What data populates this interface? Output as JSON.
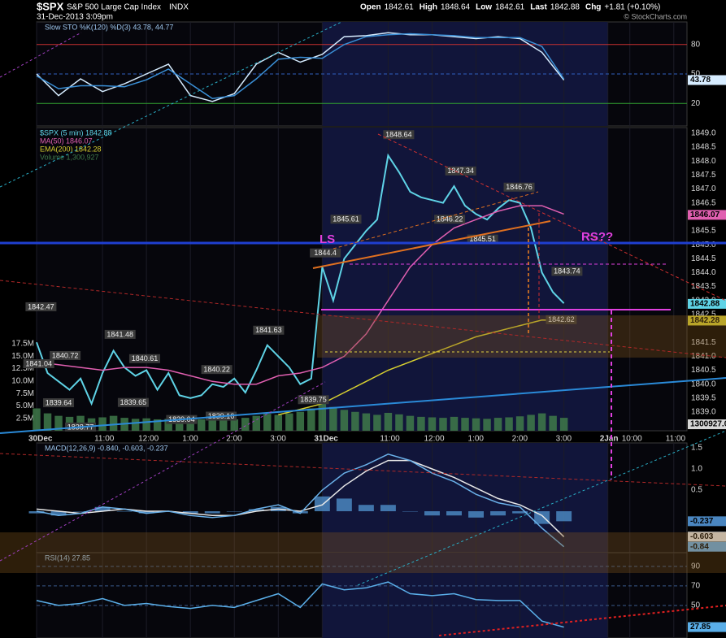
{
  "header": {
    "symbol": "$SPX",
    "name": "S&P 500 Large Cap Index",
    "exchange": "INDX",
    "timestamp": "31-Dec-2013 3:09pm",
    "quote": [
      {
        "label": "Open",
        "value": 1842.61
      },
      {
        "label": "High",
        "value": 1848.64
      },
      {
        "label": "Low",
        "value": 1842.61
      },
      {
        "label": "Last",
        "value": 1842.88
      },
      {
        "label": "Chg",
        "value": "+1.81 (+0.10%)"
      }
    ],
    "credit": "© StockCharts.com"
  },
  "chart_data": [
    {
      "type": "line",
      "title": "Slow STO %K(120) %D(3) 43.78, 44.77",
      "title_color": "#9fc8ee",
      "x": [
        0,
        0.5,
        1,
        1.5,
        2,
        2.5,
        3,
        3.5,
        4,
        4.5,
        5,
        5.5,
        6,
        6.5,
        7,
        7.5,
        8,
        8.5,
        9,
        9.5,
        10,
        10.5,
        11,
        11.5,
        12
      ],
      "series": [
        {
          "color": "#d6ecff",
          "values": [
            50,
            28,
            45,
            32,
            40,
            50,
            60,
            28,
            22,
            30,
            60,
            72,
            62,
            70,
            88,
            89,
            92,
            90,
            90,
            88,
            86,
            88,
            86,
            72,
            43.78
          ],
          "last": 43.78
        },
        {
          "color": "#3a8fd6",
          "values": [
            48,
            35,
            38,
            38,
            37,
            44,
            55,
            40,
            25,
            28,
            45,
            65,
            67,
            66,
            80,
            88,
            90,
            91,
            90,
            89,
            87,
            87,
            87,
            78,
            44.77
          ]
        }
      ],
      "ylim": [
        -3,
        103
      ],
      "yticks": [
        80,
        50,
        20
      ],
      "grid": true,
      "tick_colors": [
        "#c83030",
        "#3060c0",
        "#30a030"
      ]
    },
    {
      "type": "line",
      "x": [
        0,
        0.25,
        0.5,
        0.75,
        1,
        1.25,
        1.5,
        1.75,
        2,
        2.25,
        2.5,
        2.75,
        3,
        3.25,
        3.5,
        3.75,
        4,
        4.25,
        4.5,
        4.75,
        5,
        5.25,
        5.5,
        5.75,
        6,
        6.25,
        6.5,
        6.75,
        7,
        7.25,
        7.5,
        7.75,
        8,
        8.25,
        8.5,
        8.75,
        9,
        9.25,
        9.5,
        9.75,
        10,
        10.25,
        10.5,
        10.75,
        11,
        11.25,
        11.5,
        11.75,
        12
      ],
      "series": [
        {
          "name": "$SPX (5 min) 1842.88",
          "color": "#5fd3e6",
          "last": 1842.88,
          "values": [
            1841.5,
            1840.4,
            1840.1,
            1839.8,
            1840.2,
            1839.3,
            1840.4,
            1841.2,
            1840.6,
            1840.3,
            1840.5,
            1839.8,
            1840.4,
            1839.6,
            1839.5,
            1839.6,
            1840.0,
            1839.9,
            1840.2,
            1839.7,
            1840.5,
            1841.4,
            1841.0,
            1840.6,
            1840.0,
            1840.2,
            1844.2,
            1843.0,
            1844.5,
            1845.0,
            1845.5,
            1845.9,
            1848.2,
            1847.6,
            1846.9,
            1846.7,
            1846.6,
            1846.5,
            1847.1,
            1846.4,
            1846.1,
            1845.9,
            1846.3,
            1846.6,
            1846.5,
            1845.6,
            1844.0,
            1843.3,
            1842.9
          ]
        },
        {
          "name": "MA(50) 1846.07",
          "color": "#e05fb0",
          "last": 1846.07,
          "values": [
            1840.8,
            null,
            1840.7,
            null,
            1840.6,
            null,
            1840.5,
            null,
            1840.6,
            null,
            1840.6,
            null,
            1840.5,
            null,
            1840.3,
            null,
            1840.1,
            null,
            1840.0,
            null,
            1840.0,
            null,
            1840.3,
            null,
            1840.4,
            null,
            1840.6,
            null,
            1841.0,
            null,
            1841.8,
            null,
            1843.0,
            null,
            1844.2,
            null,
            1845.0,
            null,
            1845.6,
            null,
            1845.9,
            null,
            1846.2,
            null,
            1846.4,
            null,
            1846.4,
            null,
            1846.1
          ],
          "connect": true
        },
        {
          "name": "EMA(200) 1842.28",
          "color": "#d8d030",
          "last": 1842.28,
          "values": [
            null,
            null,
            null,
            null,
            null,
            null,
            null,
            null,
            null,
            null,
            null,
            null,
            null,
            null,
            null,
            null,
            null,
            null,
            null,
            null,
            null,
            null,
            1838.9,
            null,
            1839.1,
            null,
            1839.3,
            null,
            1839.7,
            null,
            1840.1,
            null,
            1840.5,
            null,
            1840.8,
            null,
            1841.1,
            null,
            1841.4,
            null,
            1841.7,
            null,
            1841.9,
            null,
            1842.1,
            null,
            1842.3,
            null,
            1842.28
          ],
          "connect": true
        },
        {
          "name": "Volume 1,300,927",
          "color": "#3f7a4a",
          "type": "bar",
          "axis": "y2",
          "last": 1.300927,
          "last_label": "1300927.0",
          "values": [
            4.5,
            3.5,
            3,
            2.8,
            3,
            2.5,
            2.7,
            3,
            2.6,
            2.4,
            2.5,
            2.3,
            2.4,
            2.2,
            2.1,
            2.3,
            2.2,
            2.4,
            2.3,
            2.6,
            3,
            3.4,
            3.2,
            3.5,
            3.8,
            4.5,
            5.5,
            4.8,
            4.2,
            3.8,
            3.5,
            3.2,
            3.6,
            3.3,
            3.0,
            2.8,
            2.7,
            2.6,
            2.8,
            2.6,
            2.5,
            2.4,
            2.6,
            2.7,
            2.9,
            3.2,
            3.5,
            3.0,
            2.6
          ]
        }
      ],
      "xlim": [
        0,
        14.8
      ],
      "xticks": [
        {
          "value": 0,
          "label": "30Dec"
        },
        {
          "value": 1.5,
          "label": "11:00"
        },
        {
          "value": 2.5,
          "label": "12:00"
        },
        {
          "value": 3.5,
          "label": "1:00"
        },
        {
          "value": 4.5,
          "label": "2:00"
        },
        {
          "value": 5.5,
          "label": "3:00"
        },
        {
          "value": 6.5,
          "label": "31Dec"
        },
        {
          "value": 8,
          "label": "11:00"
        },
        {
          "value": 9,
          "label": "12:00"
        },
        {
          "value": 10,
          "label": "1:00"
        },
        {
          "value": 11,
          "label": "2:00"
        },
        {
          "value": 12,
          "label": "3:00"
        },
        {
          "value": 13,
          "label": "2Jan"
        },
        {
          "value": 13.5,
          "label": "10:00"
        },
        {
          "value": 14.5,
          "label": "11:00"
        }
      ],
      "ylim": [
        1838.33,
        1849.2
      ],
      "yticks": [
        {
          "value": 1849,
          "label": "1849.0"
        },
        1848.5,
        {
          "value": 1848,
          "label": "1848.0"
        },
        1847.5,
        {
          "value": 1847,
          "label": "1847.0"
        },
        1846.5,
        1845.5,
        {
          "value": 1845,
          "label": "1845.0"
        },
        1844.5,
        {
          "value": 1844,
          "label": "1844.0"
        },
        1843.5,
        {
          "value": 1843,
          "label": "1843.0"
        },
        1842.5,
        1841.5,
        {
          "value": 1841,
          "label": "1841.0"
        },
        1840.5,
        {
          "value": 1840,
          "label": "1840.0"
        },
        1839.5,
        {
          "value": 1839,
          "label": "1839.0"
        }
      ],
      "y2lim": [
        0,
        61
      ],
      "y2ticks": [
        {
          "value": 17.5,
          "label": "17.5M"
        },
        {
          "value": 15,
          "label": "15.0M"
        },
        {
          "value": 12.5,
          "label": "12.5M"
        },
        {
          "value": 10,
          "label": "10.0M"
        },
        {
          "value": 7.5,
          "label": "7.5M"
        },
        {
          "value": 5,
          "label": "5.0M"
        },
        {
          "value": 2.5,
          "label": "2.5M"
        }
      ],
      "annotations": [
        {
          "x": 8.24,
          "value": 1848.64
        },
        {
          "x": 9.65,
          "value": 1847.34
        },
        {
          "x": 10.98,
          "value": 1846.76
        },
        {
          "x": 9.4,
          "value": 1846.22,
          "pos": "below"
        },
        {
          "x": 7.04,
          "value": 1845.61
        },
        {
          "x": 10.15,
          "value": 1845.51,
          "pos": "below"
        },
        {
          "x": 6.57,
          "value": 1844.4
        },
        {
          "x": 12.07,
          "value": 1843.74
        },
        {
          "x": 11.94,
          "value": 1842.62,
          "pos": "below"
        },
        {
          "x": 0.1,
          "value": 1842.47
        },
        {
          "x": 1.9,
          "value": 1841.48
        },
        {
          "x": 5.28,
          "value": 1841.63
        },
        {
          "x": 0.65,
          "value": 1840.72
        },
        {
          "x": 2.46,
          "value": 1840.61
        },
        {
          "x": 4.1,
          "value": 1840.22
        },
        {
          "x": 0.05,
          "value": 1841.04,
          "pos": "below"
        },
        {
          "x": 0.5,
          "value": 1839.64,
          "pos": "below"
        },
        {
          "x": 2.2,
          "value": 1839.65,
          "pos": "below"
        },
        {
          "x": 6.3,
          "value": 1839.75,
          "pos": "below"
        },
        {
          "x": 3.3,
          "value": 1839.04,
          "pos": "below"
        },
        {
          "x": 4.2,
          "value": 1839.16,
          "pos": "below"
        },
        {
          "x": 1.0,
          "value": 1838.77,
          "pos": "below"
        }
      ],
      "notes": [
        "LS",
        "RS??"
      ]
    },
    {
      "type": "line",
      "title": "MACD(12,26,9) -0.840, -0.603, -0.237",
      "title_color": "#9fc8ee",
      "x": [
        0,
        0.5,
        1,
        1.5,
        2,
        2.5,
        3,
        3.5,
        4,
        4.5,
        5,
        5.5,
        6,
        6.5,
        7,
        7.5,
        8,
        8.5,
        9,
        9.5,
        10,
        10.5,
        11,
        11.5,
        12
      ],
      "series": [
        {
          "color": "#4a86c0",
          "type": "bar",
          "last": -0.237,
          "values": [
            -0.05,
            -0.1,
            0,
            0.1,
            0,
            -0.05,
            0,
            -0.05,
            -0.05,
            0,
            0.05,
            0.1,
            -0.05,
            0.35,
            0.3,
            0.15,
            0.15,
            0,
            -0.1,
            -0.1,
            -0.15,
            -0.1,
            -0.05,
            -0.3,
            -0.237
          ]
        },
        {
          "color": "#e8e8e8",
          "last": -0.603,
          "values": [
            0.05,
            0,
            -0.05,
            0,
            0.05,
            0,
            0,
            -0.05,
            -0.1,
            -0.1,
            0,
            0.05,
            0,
            0.15,
            0.6,
            0.95,
            1.2,
            1.2,
            1.0,
            0.8,
            0.55,
            0.3,
            0.15,
            -0.1,
            -0.603
          ]
        },
        {
          "color": "#6ab0e8",
          "last": -0.84,
          "values": [
            0,
            -0.1,
            -0.05,
            0.1,
            0.05,
            -0.05,
            0,
            -0.1,
            -0.15,
            -0.1,
            0.05,
            0.15,
            -0.05,
            0.5,
            0.9,
            1.1,
            1.35,
            1.2,
            0.9,
            0.7,
            0.4,
            0.2,
            0.1,
            -0.4,
            -0.84
          ]
        }
      ],
      "ylim": [
        -0.98,
        1.615
      ],
      "yticks": [
        1.5,
        {
          "value": 1,
          "label": "1.0"
        },
        0.5
      ]
    },
    {
      "type": "line",
      "title": "RSI(14) 27.85",
      "title_color": "#9fc8ee",
      "x": [
        0,
        0.5,
        1,
        1.5,
        2,
        2.5,
        3,
        3.5,
        4,
        4.5,
        5,
        5.5,
        6,
        6.5,
        7,
        7.5,
        8,
        8.5,
        9,
        9.5,
        10,
        10.5,
        11,
        11.5,
        12
      ],
      "series": [
        {
          "color": "#5aaee8",
          "last": 27.85,
          "values": [
            55,
            50,
            52,
            57,
            50,
            52,
            49,
            47,
            50,
            48,
            55,
            62,
            48,
            72,
            66,
            68,
            74,
            62,
            60,
            62,
            56,
            55,
            55,
            34,
            27.85
          ]
        }
      ],
      "ylim": [
        16.7,
        104
      ],
      "yticks": [
        90,
        70,
        50
      ],
      "grid": true
    }
  ]
}
